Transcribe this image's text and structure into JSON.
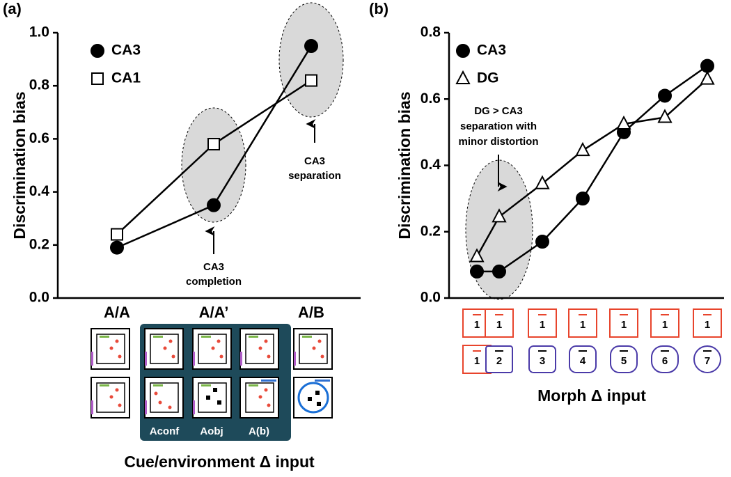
{
  "chart_data": [
    {
      "type": "line",
      "panel_label": "(a)",
      "ylabel": "Discrimination bias",
      "xlabel": "Cue/environment Δ input",
      "categories": [
        "A/A",
        "A/A’",
        "A/B"
      ],
      "series": [
        {
          "name": "CA3",
          "color": "#000000",
          "marker": "circle",
          "values": [
            0.19,
            0.35,
            0.95
          ]
        },
        {
          "name": "CA1",
          "color": "#000000",
          "marker": "square",
          "values": [
            0.24,
            0.58,
            0.82
          ]
        }
      ],
      "ylim": [
        0,
        1
      ],
      "yticks": [
        {
          "value": 0,
          "label": "0.0"
        },
        0.2,
        0.4,
        0.6,
        0.8,
        {
          "value": 1,
          "label": "1.0"
        }
      ],
      "annotations": [
        [
          "CA3",
          "completion"
        ],
        [
          "CA3",
          "separation"
        ]
      ],
      "condition_labels": [
        "Aconf",
        "Aobj",
        "A(b)"
      ]
    },
    {
      "type": "line",
      "panel_label": "(b)",
      "ylabel": "Discrimination bias",
      "xlabel": "Morph Δ input",
      "categories": [
        "1",
        "2",
        "3",
        "4",
        "5",
        "6",
        "7"
      ],
      "reference_labels": [
        "1",
        "1",
        "1",
        "1",
        "1",
        "1",
        "1"
      ],
      "series": [
        {
          "name": "CA3",
          "color": "#000000",
          "marker": "circle",
          "values": [
            0.08,
            0.08,
            0.17,
            0.3,
            0.5,
            0.61,
            0.7
          ]
        },
        {
          "name": "DG",
          "color": "#000000",
          "marker": "triangle",
          "values": [
            0.125,
            0.245,
            0.345,
            0.445,
            0.525,
            0.545,
            0.66
          ]
        }
      ],
      "ylim": [
        0,
        0.8
      ],
      "yticks": [
        {
          "value": 0,
          "label": "0.0"
        },
        0.2,
        0.4,
        0.6,
        0.8
      ],
      "annotations": [
        [
          "DG > CA3",
          "separation with",
          "minor distortion"
        ]
      ]
    }
  ]
}
